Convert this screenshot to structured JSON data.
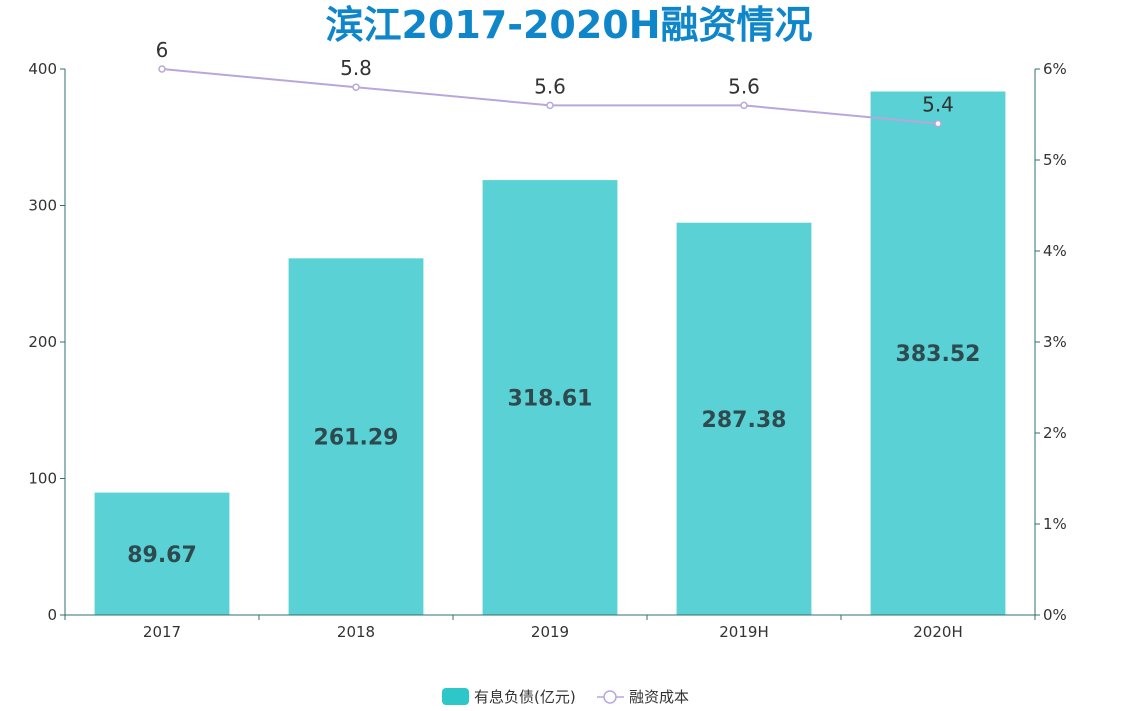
{
  "chart_data": {
    "type": "bar",
    "title": "滨江2017-2020H融资情况",
    "categories": [
      "2017",
      "2018",
      "2019",
      "2019H",
      "2020H"
    ],
    "series": [
      {
        "name": "有息负债(亿元)",
        "type": "bar",
        "axis": "left",
        "values": [
          89.67,
          261.29,
          318.61,
          287.38,
          383.52
        ],
        "color": "#59d1d5"
      },
      {
        "name": "融资成本",
        "type": "line",
        "axis": "right",
        "values": [
          6,
          5.8,
          5.6,
          5.6,
          5.4
        ],
        "color": "#b9a7dc"
      }
    ],
    "y_left": {
      "lim": [
        0,
        400
      ],
      "ticks": [
        "0",
        "100",
        "200",
        "300",
        "400"
      ]
    },
    "y_right": {
      "lim": [
        0,
        6
      ],
      "ticks": [
        "0%",
        "1%",
        "2%",
        "3%",
        "4%",
        "5%",
        "6%"
      ]
    },
    "axis_color": "#2f6f73",
    "legend_position": "bottom",
    "grid": false
  }
}
